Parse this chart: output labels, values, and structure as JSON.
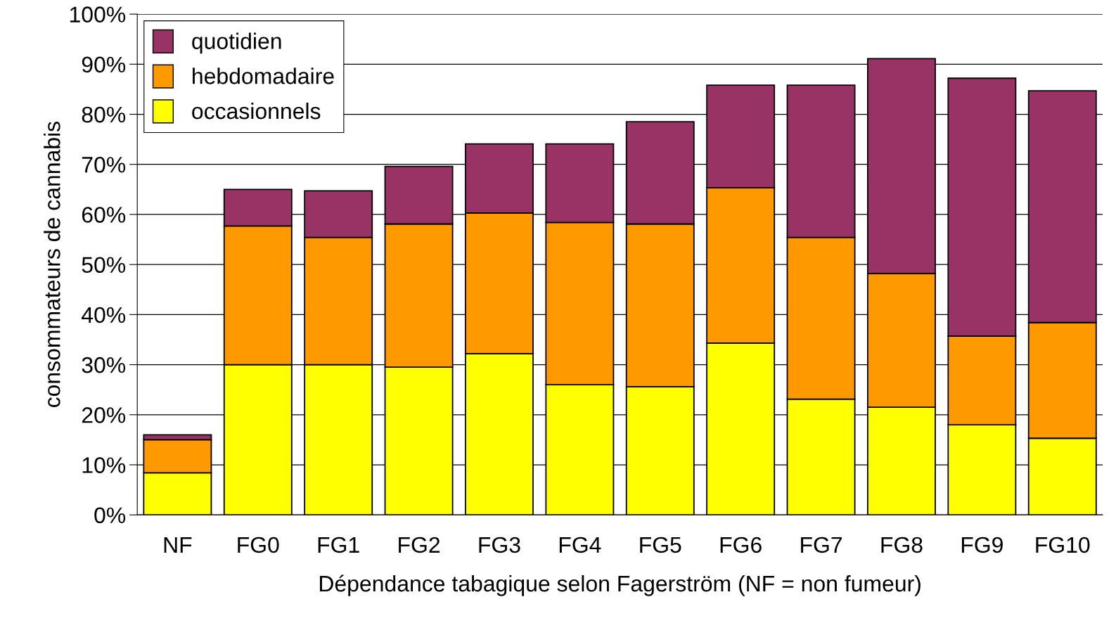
{
  "chart_data": {
    "type": "bar",
    "stacked": true,
    "xlabel": "Dépendance tabagique selon Fagerström (NF = non fumeur)",
    "ylabel": "consommateurs de cannabis",
    "categories": [
      "NF",
      "FG0",
      "FG1",
      "FG2",
      "FG3",
      "FG4",
      "FG5",
      "FG6",
      "FG7",
      "FG8",
      "FG9",
      "FG10"
    ],
    "series": [
      {
        "name": "occasionnels",
        "color": "#ffff00",
        "values": [
          8.4,
          30.0,
          30.0,
          29.5,
          32.2,
          26.0,
          25.6,
          34.3,
          23.1,
          21.5,
          18.0,
          15.3
        ]
      },
      {
        "name": "hebdomadaire",
        "color": "#ff9900",
        "values": [
          6.6,
          27.7,
          25.4,
          28.6,
          28.1,
          32.4,
          32.5,
          31.0,
          32.3,
          26.7,
          17.7,
          23.1
        ]
      },
      {
        "name": "quotidien",
        "color": "#993366",
        "values": [
          1.0,
          7.3,
          9.3,
          11.5,
          13.8,
          15.7,
          20.4,
          20.5,
          30.4,
          42.9,
          51.5,
          46.3
        ]
      }
    ],
    "ylim": [
      0,
      100
    ],
    "yticks": [
      {
        "value": 0,
        "label": "0%"
      },
      {
        "value": 10,
        "label": "10%"
      },
      {
        "value": 20,
        "label": "20%"
      },
      {
        "value": 30,
        "label": "30%"
      },
      {
        "value": 40,
        "label": "40%"
      },
      {
        "value": 50,
        "label": "50%"
      },
      {
        "value": 60,
        "label": "60%"
      },
      {
        "value": 70,
        "label": "70%"
      },
      {
        "value": 80,
        "label": "80%"
      },
      {
        "value": 90,
        "label": "90%"
      },
      {
        "value": 100,
        "label": "100%"
      }
    ],
    "grid": "y",
    "legend": "top left"
  }
}
